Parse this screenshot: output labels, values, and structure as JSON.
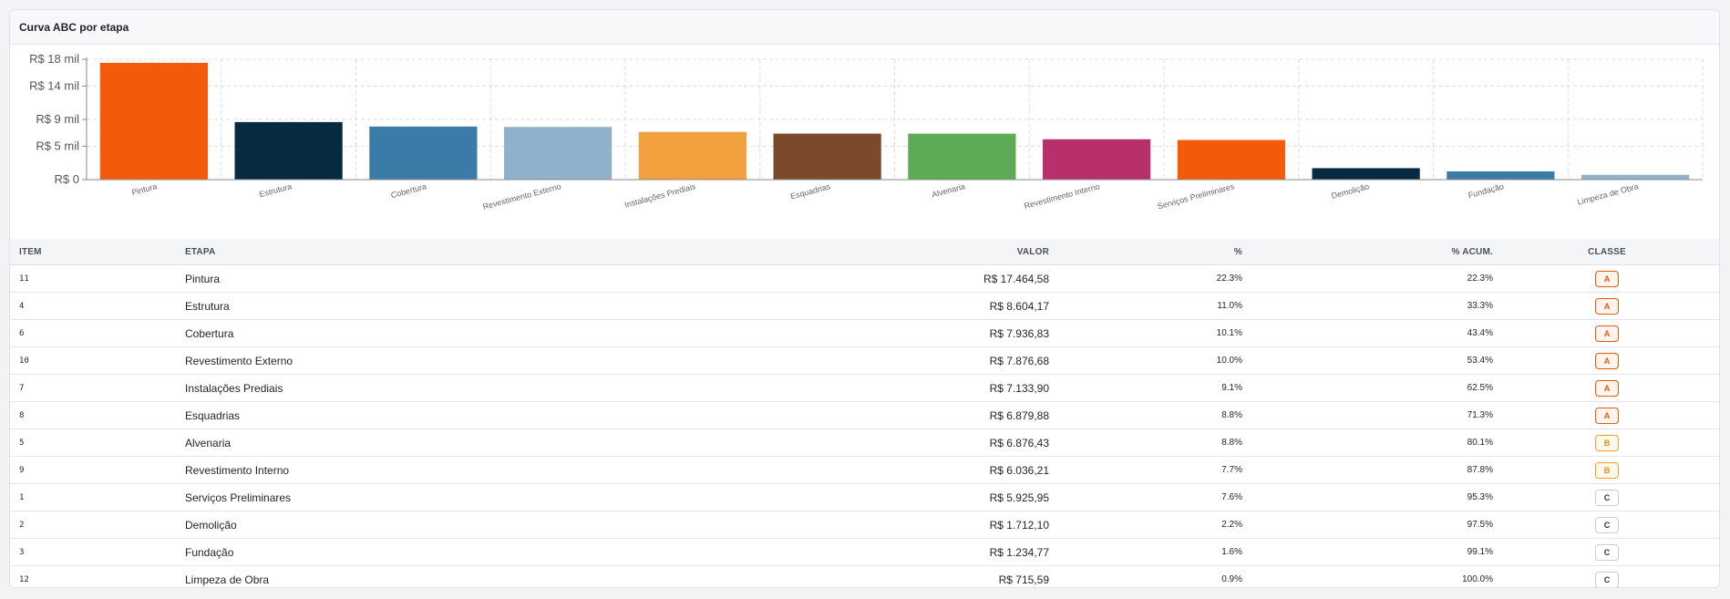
{
  "card": {
    "title": "Curva ABC por etapa"
  },
  "chart_data": {
    "type": "bar",
    "title": "",
    "xlabel": "",
    "ylabel": "",
    "ylim": [
      0,
      18000
    ],
    "grid": true,
    "yticks": [
      0,
      5000,
      9000,
      14000,
      18000
    ],
    "ytick_labels": [
      "R$ 0",
      "R$ 5 mil",
      "R$ 9 mil",
      "R$ 14 mil",
      "R$ 18 mil"
    ],
    "categories": [
      "Pintura",
      "Estrutura",
      "Cobertura",
      "Revestimento Externo",
      "Instalações Prediais",
      "Esquadrias",
      "Alvenaria",
      "Revestimento Interno",
      "Serviços Preliminares",
      "Demolição",
      "Fundação",
      "Limpeza de Obra"
    ],
    "values": [
      17464.58,
      8604.17,
      7936.83,
      7876.68,
      7133.9,
      6879.88,
      6876.43,
      6036.21,
      5925.95,
      1712.1,
      1234.77,
      715.59
    ],
    "colors": [
      "#f35a0a",
      "#062a40",
      "#3a7ba8",
      "#8fb1cb",
      "#f3a03f",
      "#7a4a2b",
      "#5dac55",
      "#b8306b",
      "#f35a0a",
      "#062a40",
      "#3a7ba8",
      "#8fb1cb"
    ]
  },
  "table": {
    "headers": {
      "item": "ITEM",
      "etapa": "ETAPA",
      "valor": "VALOR",
      "pct": "%",
      "acum": "% ACUM.",
      "classe": "CLASSE"
    },
    "rows": [
      {
        "item": "11",
        "etapa": "Pintura",
        "valor": "R$ 17.464,58",
        "pct": "22.3%",
        "acum": "22.3%",
        "classe": "A"
      },
      {
        "item": "4",
        "etapa": "Estrutura",
        "valor": "R$ 8.604,17",
        "pct": "11.0%",
        "acum": "33.3%",
        "classe": "A"
      },
      {
        "item": "6",
        "etapa": "Cobertura",
        "valor": "R$ 7.936,83",
        "pct": "10.1%",
        "acum": "43.4%",
        "classe": "A"
      },
      {
        "item": "10",
        "etapa": "Revestimento Externo",
        "valor": "R$ 7.876,68",
        "pct": "10.0%",
        "acum": "53.4%",
        "classe": "A"
      },
      {
        "item": "7",
        "etapa": "Instalações Prediais",
        "valor": "R$ 7.133,90",
        "pct": "9.1%",
        "acum": "62.5%",
        "classe": "A"
      },
      {
        "item": "8",
        "etapa": "Esquadrias",
        "valor": "R$ 6.879,88",
        "pct": "8.8%",
        "acum": "71.3%",
        "classe": "A"
      },
      {
        "item": "5",
        "etapa": "Alvenaria",
        "valor": "R$ 6.876,43",
        "pct": "8.8%",
        "acum": "80.1%",
        "classe": "B"
      },
      {
        "item": "9",
        "etapa": "Revestimento Interno",
        "valor": "R$ 6.036,21",
        "pct": "7.7%",
        "acum": "87.8%",
        "classe": "B"
      },
      {
        "item": "1",
        "etapa": "Serviços Preliminares",
        "valor": "R$ 5.925,95",
        "pct": "7.6%",
        "acum": "95.3%",
        "classe": "C"
      },
      {
        "item": "2",
        "etapa": "Demolição",
        "valor": "R$ 1.712,10",
        "pct": "2.2%",
        "acum": "97.5%",
        "classe": "C"
      },
      {
        "item": "3",
        "etapa": "Fundação",
        "valor": "R$ 1.234,77",
        "pct": "1.6%",
        "acum": "99.1%",
        "classe": "C"
      },
      {
        "item": "12",
        "etapa": "Limpeza de Obra",
        "valor": "R$ 715,59",
        "pct": "0.9%",
        "acum": "100.0%",
        "classe": "C"
      }
    ]
  }
}
